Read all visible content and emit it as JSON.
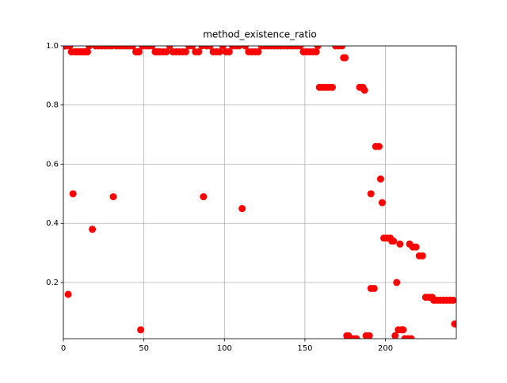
{
  "chart_data": {
    "type": "scatter",
    "title": "method_existence_ratio",
    "color": "#ff0000",
    "grid": true,
    "xlim": [
      0,
      244
    ],
    "ylim": [
      0.01,
      1.0
    ],
    "xticks": [
      0,
      50,
      100,
      150,
      200
    ],
    "yticks": [
      0.2,
      0.4,
      0.6,
      0.8,
      {
        "value": 1.0,
        "label": "1.0"
      }
    ],
    "x": [
      0,
      1,
      2,
      3,
      4,
      5,
      6,
      7,
      8,
      9,
      10,
      11,
      12,
      13,
      14,
      15,
      16,
      18,
      20,
      22,
      24,
      26,
      28,
      30,
      31,
      33,
      35,
      37,
      39,
      41,
      43,
      45,
      46,
      47,
      48,
      49,
      51,
      53,
      55,
      57,
      58,
      59,
      60,
      62,
      64,
      66,
      68,
      70,
      72,
      74,
      76,
      78,
      80,
      82,
      84,
      86,
      87,
      89,
      91,
      93,
      95,
      97,
      99,
      101,
      103,
      105,
      107,
      109,
      111,
      113,
      115,
      117,
      119,
      121,
      123,
      125,
      127,
      129,
      131,
      133,
      135,
      137,
      139,
      141,
      143,
      145,
      147,
      149,
      151,
      153,
      155,
      157,
      158,
      159,
      161,
      163,
      165,
      167,
      169,
      171,
      173,
      174,
      175,
      176,
      177,
      178,
      180,
      182,
      184,
      186,
      187,
      188,
      190,
      191,
      191,
      193,
      194,
      196,
      197,
      198,
      199,
      201,
      203,
      204,
      205,
      206,
      207,
      208,
      209,
      210,
      211,
      212,
      214,
      215,
      216,
      217,
      219,
      221,
      223,
      225,
      227,
      229,
      230,
      232,
      234,
      236,
      238,
      240,
      242,
      243
    ],
    "values": [
      1,
      1,
      1,
      0.16,
      1,
      0.98,
      0.5,
      0.98,
      0.98,
      0.98,
      0.98,
      0.98,
      0.98,
      0.98,
      0.98,
      0.98,
      1,
      0.38,
      1,
      1,
      1,
      1,
      1,
      1,
      0.49,
      1,
      1,
      1,
      1,
      1,
      1,
      0.98,
      0.98,
      0.98,
      0.04,
      1,
      1,
      1,
      1,
      0.98,
      0.98,
      0.98,
      0.98,
      0.98,
      0.98,
      1,
      0.98,
      0.98,
      0.98,
      0.98,
      0.98,
      1,
      1,
      0.98,
      0.98,
      1,
      0.49,
      1,
      1,
      0.98,
      0.98,
      0.98,
      1,
      0.98,
      0.98,
      1,
      1,
      1,
      0.45,
      1,
      0.98,
      0.98,
      0.98,
      0.98,
      1,
      1,
      1,
      1,
      1,
      1,
      1,
      1,
      1,
      1,
      1,
      1,
      1,
      0.98,
      0.98,
      0.98,
      0.98,
      0.98,
      1,
      0.86,
      0.86,
      0.86,
      0.86,
      0.86,
      1,
      1,
      1,
      0.96,
      0.96,
      0.02,
      0.02,
      0.01,
      0.01,
      0.01,
      0.86,
      0.86,
      0.85,
      0.02,
      0.02,
      0.5,
      0.18,
      0.18,
      0.66,
      0.66,
      0.55,
      0.47,
      0.35,
      0.35,
      0.35,
      0.34,
      0.34,
      0.02,
      0.2,
      0.04,
      0.33,
      0.04,
      0.04,
      0.01,
      0.01,
      0.33,
      0.01,
      0.32,
      0.32,
      0.29,
      0.29,
      0.15,
      0.15,
      0.15,
      0.14,
      0.14,
      0.14,
      0.14,
      0.14,
      0.14,
      0.14,
      0.06
    ]
  }
}
